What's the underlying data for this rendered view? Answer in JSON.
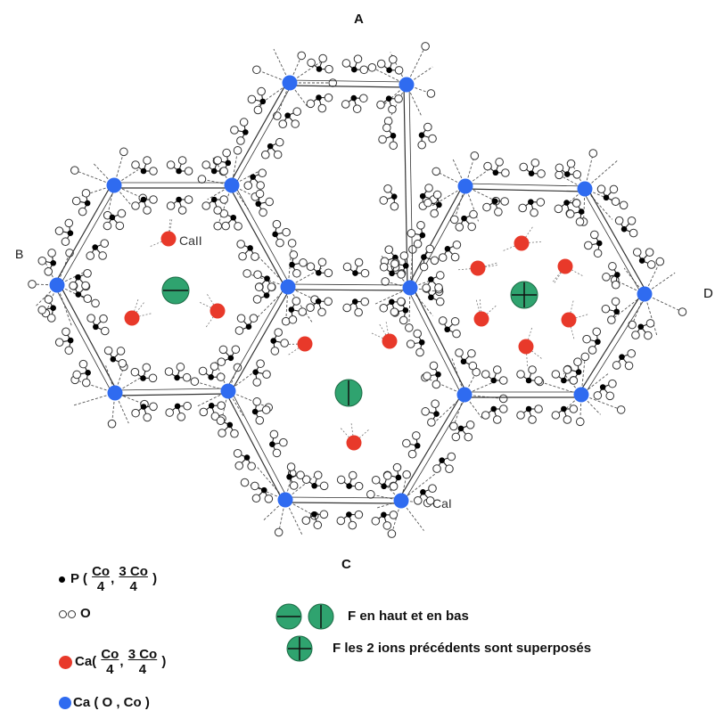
{
  "corner_labels": {
    "top": "A",
    "left": "B",
    "bottom": "C",
    "right": "D"
  },
  "site_labels": {
    "ca2": "CaII",
    "ca1": "CaI"
  },
  "legend": {
    "p": {
      "prefix": "P (",
      "frac1_num": "Co",
      "frac1_den": "4",
      "sep": ",",
      "frac2_num": "3 Co",
      "frac2_den": "4",
      "suffix": ")"
    },
    "o": {
      "label": "O"
    },
    "ca_red": {
      "prefix": "Ca(",
      "frac1_num": "Co",
      "frac1_den": "4",
      "sep": ",",
      "frac2_num": "3 Co",
      "frac2_den": "4",
      "suffix": ")"
    },
    "ca_blue": {
      "label": "Ca ( O , Co )"
    },
    "f_updown": {
      "label": "F en haut et en bas"
    },
    "f_superposed": {
      "label": "F les 2 ions précédents sont superposés"
    }
  },
  "colors": {
    "ca_blue": "#2f6bf0",
    "ca_red": "#e8392a",
    "fluorine": "#2fa36f",
    "phosphorus": "#000000",
    "line": "#333333"
  }
}
